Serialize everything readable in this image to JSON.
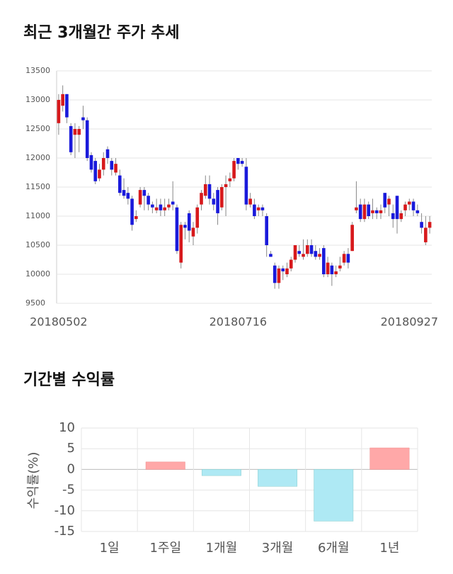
{
  "chart_data": [
    {
      "type": "candlestick",
      "title": "최근 3개월간 주가 추세",
      "categories": [
        "20180502",
        null,
        null,
        null,
        null,
        null,
        null,
        null,
        null,
        null,
        null,
        null,
        null,
        null,
        null,
        null,
        null,
        null,
        null,
        null,
        null,
        null,
        null,
        null,
        null,
        null,
        null,
        null,
        null,
        null,
        null,
        null,
        null,
        null,
        null,
        null,
        null,
        null,
        null,
        null,
        null,
        null,
        null,
        null,
        "20180716",
        null,
        null,
        null,
        null,
        null,
        null,
        null,
        null,
        null,
        null,
        null,
        null,
        null,
        null,
        null,
        null,
        null,
        null,
        null,
        null,
        null,
        null,
        null,
        null,
        null,
        null,
        null,
        null,
        null,
        null,
        null,
        null,
        null,
        null,
        null,
        null,
        null,
        null,
        null,
        null,
        null,
        "20180927",
        null,
        null,
        null,
        null,
        null
      ],
      "open": [
        12600,
        12900,
        13100,
        12550,
        12400,
        12400,
        12700,
        12650,
        12050,
        11950,
        11650,
        11800,
        12150,
        11950,
        11750,
        11700,
        11450,
        11400,
        11300,
        10950,
        11200,
        11450,
        11350,
        11200,
        11100,
        11200,
        11100,
        11150,
        11250,
        11150,
        10200,
        10850,
        11050,
        10650,
        10800,
        11200,
        11350,
        11550,
        11300,
        11450,
        11150,
        11500,
        11600,
        11650,
        12000,
        11950,
        11850,
        11200,
        11200,
        11100,
        11150,
        11000,
        10350,
        10150,
        9850,
        10100,
        10000,
        10100,
        10250,
        10400,
        10300,
        10350,
        10500,
        10400,
        10300,
        10450,
        10000,
        10150,
        10000,
        10100,
        10200,
        10350,
        10400,
        11100,
        11200,
        10950,
        11200,
        11050,
        11100,
        11050,
        11400,
        11200,
        11050,
        11350,
        10950,
        11100,
        11200,
        11250,
        11100,
        10900,
        10550,
        10800
      ],
      "high": [
        13100,
        13250,
        13100,
        12600,
        12600,
        12550,
        12900,
        12700,
        12100,
        12000,
        11900,
        12100,
        12200,
        12000,
        12000,
        11800,
        11650,
        11500,
        11350,
        11100,
        11500,
        11500,
        11400,
        11250,
        11300,
        11300,
        11300,
        11300,
        11600,
        11200,
        10900,
        10900,
        11100,
        10900,
        11200,
        11450,
        11700,
        11700,
        11400,
        11500,
        11550,
        11700,
        11750,
        12000,
        12000,
        12000,
        12000,
        11400,
        11300,
        11200,
        11200,
        11050,
        10400,
        10200,
        10150,
        10150,
        10200,
        10300,
        10500,
        10500,
        10600,
        10600,
        10600,
        10500,
        10450,
        10500,
        10300,
        10200,
        10150,
        10300,
        10400,
        10450,
        10900,
        11600,
        11300,
        11300,
        11250,
        11300,
        11150,
        11200,
        11400,
        11350,
        11200,
        11350,
        11100,
        11250,
        11300,
        11300,
        11200,
        11050,
        11000,
        11000
      ],
      "low": [
        12400,
        12800,
        12600,
        12050,
        12000,
        12100,
        12500,
        11950,
        11750,
        11550,
        11600,
        11700,
        11900,
        11700,
        11700,
        11350,
        11300,
        11200,
        10750,
        10900,
        11150,
        11100,
        11100,
        11050,
        11050,
        11000,
        11000,
        11100,
        11100,
        10350,
        10100,
        10600,
        10550,
        10500,
        10700,
        11100,
        11300,
        11200,
        11100,
        10850,
        11100,
        11000,
        11500,
        11600,
        11800,
        11850,
        11100,
        11150,
        10950,
        11000,
        11000,
        10300,
        10300,
        9750,
        9750,
        9900,
        9950,
        10050,
        10200,
        10300,
        10250,
        10300,
        10300,
        10250,
        10250,
        9950,
        9950,
        9800,
        9950,
        10050,
        10150,
        10100,
        10400,
        11050,
        10900,
        10900,
        10950,
        10950,
        10950,
        10950,
        11050,
        11000,
        10800,
        10700,
        10900,
        11000,
        11100,
        11000,
        11000,
        10700,
        10500,
        10700
      ],
      "close": [
        13000,
        13100,
        12700,
        12100,
        12500,
        12500,
        12650,
        12000,
        11800,
        11600,
        11800,
        12000,
        12000,
        11800,
        11900,
        11400,
        11350,
        11300,
        10850,
        11000,
        11450,
        11350,
        11200,
        11150,
        11150,
        11100,
        11150,
        11200,
        11200,
        10400,
        10850,
        10800,
        10750,
        10800,
        11150,
        11400,
        11550,
        11300,
        11200,
        11050,
        11500,
        11550,
        11650,
        11950,
        11900,
        11900,
        11200,
        11300,
        11000,
        11150,
        11100,
        10500,
        10300,
        9850,
        10100,
        10050,
        10100,
        10250,
        10500,
        10350,
        10350,
        10500,
        10350,
        10300,
        10350,
        10000,
        10200,
        10000,
        10050,
        10150,
        10350,
        10200,
        10850,
        11150,
        10950,
        11200,
        11000,
        11100,
        11050,
        11100,
        11150,
        11300,
        10950,
        10950,
        11050,
        11200,
        11250,
        11100,
        11050,
        10800,
        10800,
        10900
      ],
      "up_color": "#d7191c",
      "down_color": "#1a1adb",
      "ylim": [
        9500,
        13500
      ],
      "yticks": [
        9500,
        10000,
        10500,
        11000,
        11500,
        12000,
        12500,
        13000,
        13500
      ],
      "grid": true
    },
    {
      "type": "bar",
      "title": "기간별 수익률",
      "ylabel": "수익률(%)",
      "categories": [
        "1일",
        "1주일",
        "1개월",
        "3개월",
        "6개월",
        "1년"
      ],
      "values": [
        0,
        1.8,
        -1.5,
        -4.1,
        -12.5,
        5.2
      ],
      "positive_color": "#ffa8a8",
      "negative_color": "#aee9f4",
      "ylim": [
        -15,
        10
      ],
      "yticks": [
        -15,
        -10,
        -5,
        0,
        5,
        10
      ],
      "grid": true
    }
  ]
}
